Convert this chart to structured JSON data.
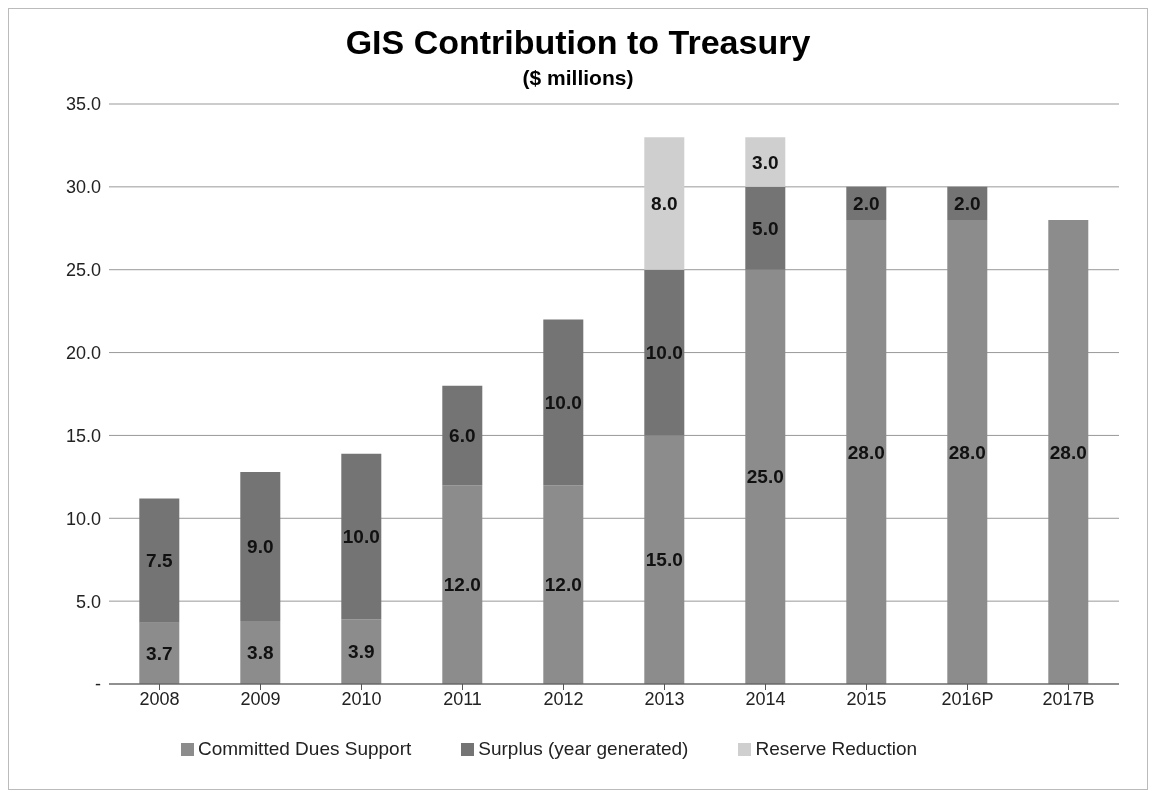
{
  "chart_data": {
    "type": "bar",
    "title": "GIS Contribution to Treasury",
    "subtitle": "($ millions)",
    "stacked": true,
    "categories": [
      "2008",
      "2009",
      "2010",
      "2011",
      "2012",
      "2013",
      "2014",
      "2015",
      "2016P",
      "2017B"
    ],
    "series": [
      {
        "name": "Committed Dues Support",
        "color": "#8c8c8c",
        "values": [
          3.7,
          3.8,
          3.9,
          12.0,
          12.0,
          15.0,
          25.0,
          28.0,
          28.0,
          28.0
        ],
        "value_labels": [
          "3.7",
          "3.8",
          "3.9",
          "12.0",
          "12.0",
          "15.0",
          "25.0",
          "28.0",
          "28.0",
          "28.0"
        ]
      },
      {
        "name": "Surplus (year generated)",
        "color": "#747474",
        "values": [
          7.5,
          9.0,
          10.0,
          6.0,
          10.0,
          10.0,
          5.0,
          2.0,
          2.0,
          null
        ],
        "value_labels": [
          "7.5",
          "9.0",
          "10.0",
          "6.0",
          "10.0",
          "10.0",
          "5.0",
          "2.0",
          "2.0",
          null
        ]
      },
      {
        "name": "Reserve Reduction",
        "color": "#cfcfcf",
        "values": [
          null,
          null,
          null,
          null,
          null,
          8.0,
          3.0,
          null,
          null,
          null
        ],
        "value_labels": [
          null,
          null,
          null,
          null,
          null,
          "8.0",
          "3.0",
          null,
          null,
          null
        ]
      }
    ],
    "ylim": [
      0,
      35
    ],
    "yticks": [
      {
        "value": 0,
        "label": "-"
      },
      {
        "value": 5,
        "label": "5.0"
      },
      {
        "value": 10,
        "label": "10.0"
      },
      {
        "value": 15,
        "label": "15.0"
      },
      {
        "value": 20,
        "label": "20.0"
      },
      {
        "value": 25,
        "label": "25.0"
      },
      {
        "value": 30,
        "label": "30.0"
      },
      {
        "value": 35,
        "label": "35.0"
      }
    ],
    "grid": "y",
    "legend": "bottom"
  }
}
